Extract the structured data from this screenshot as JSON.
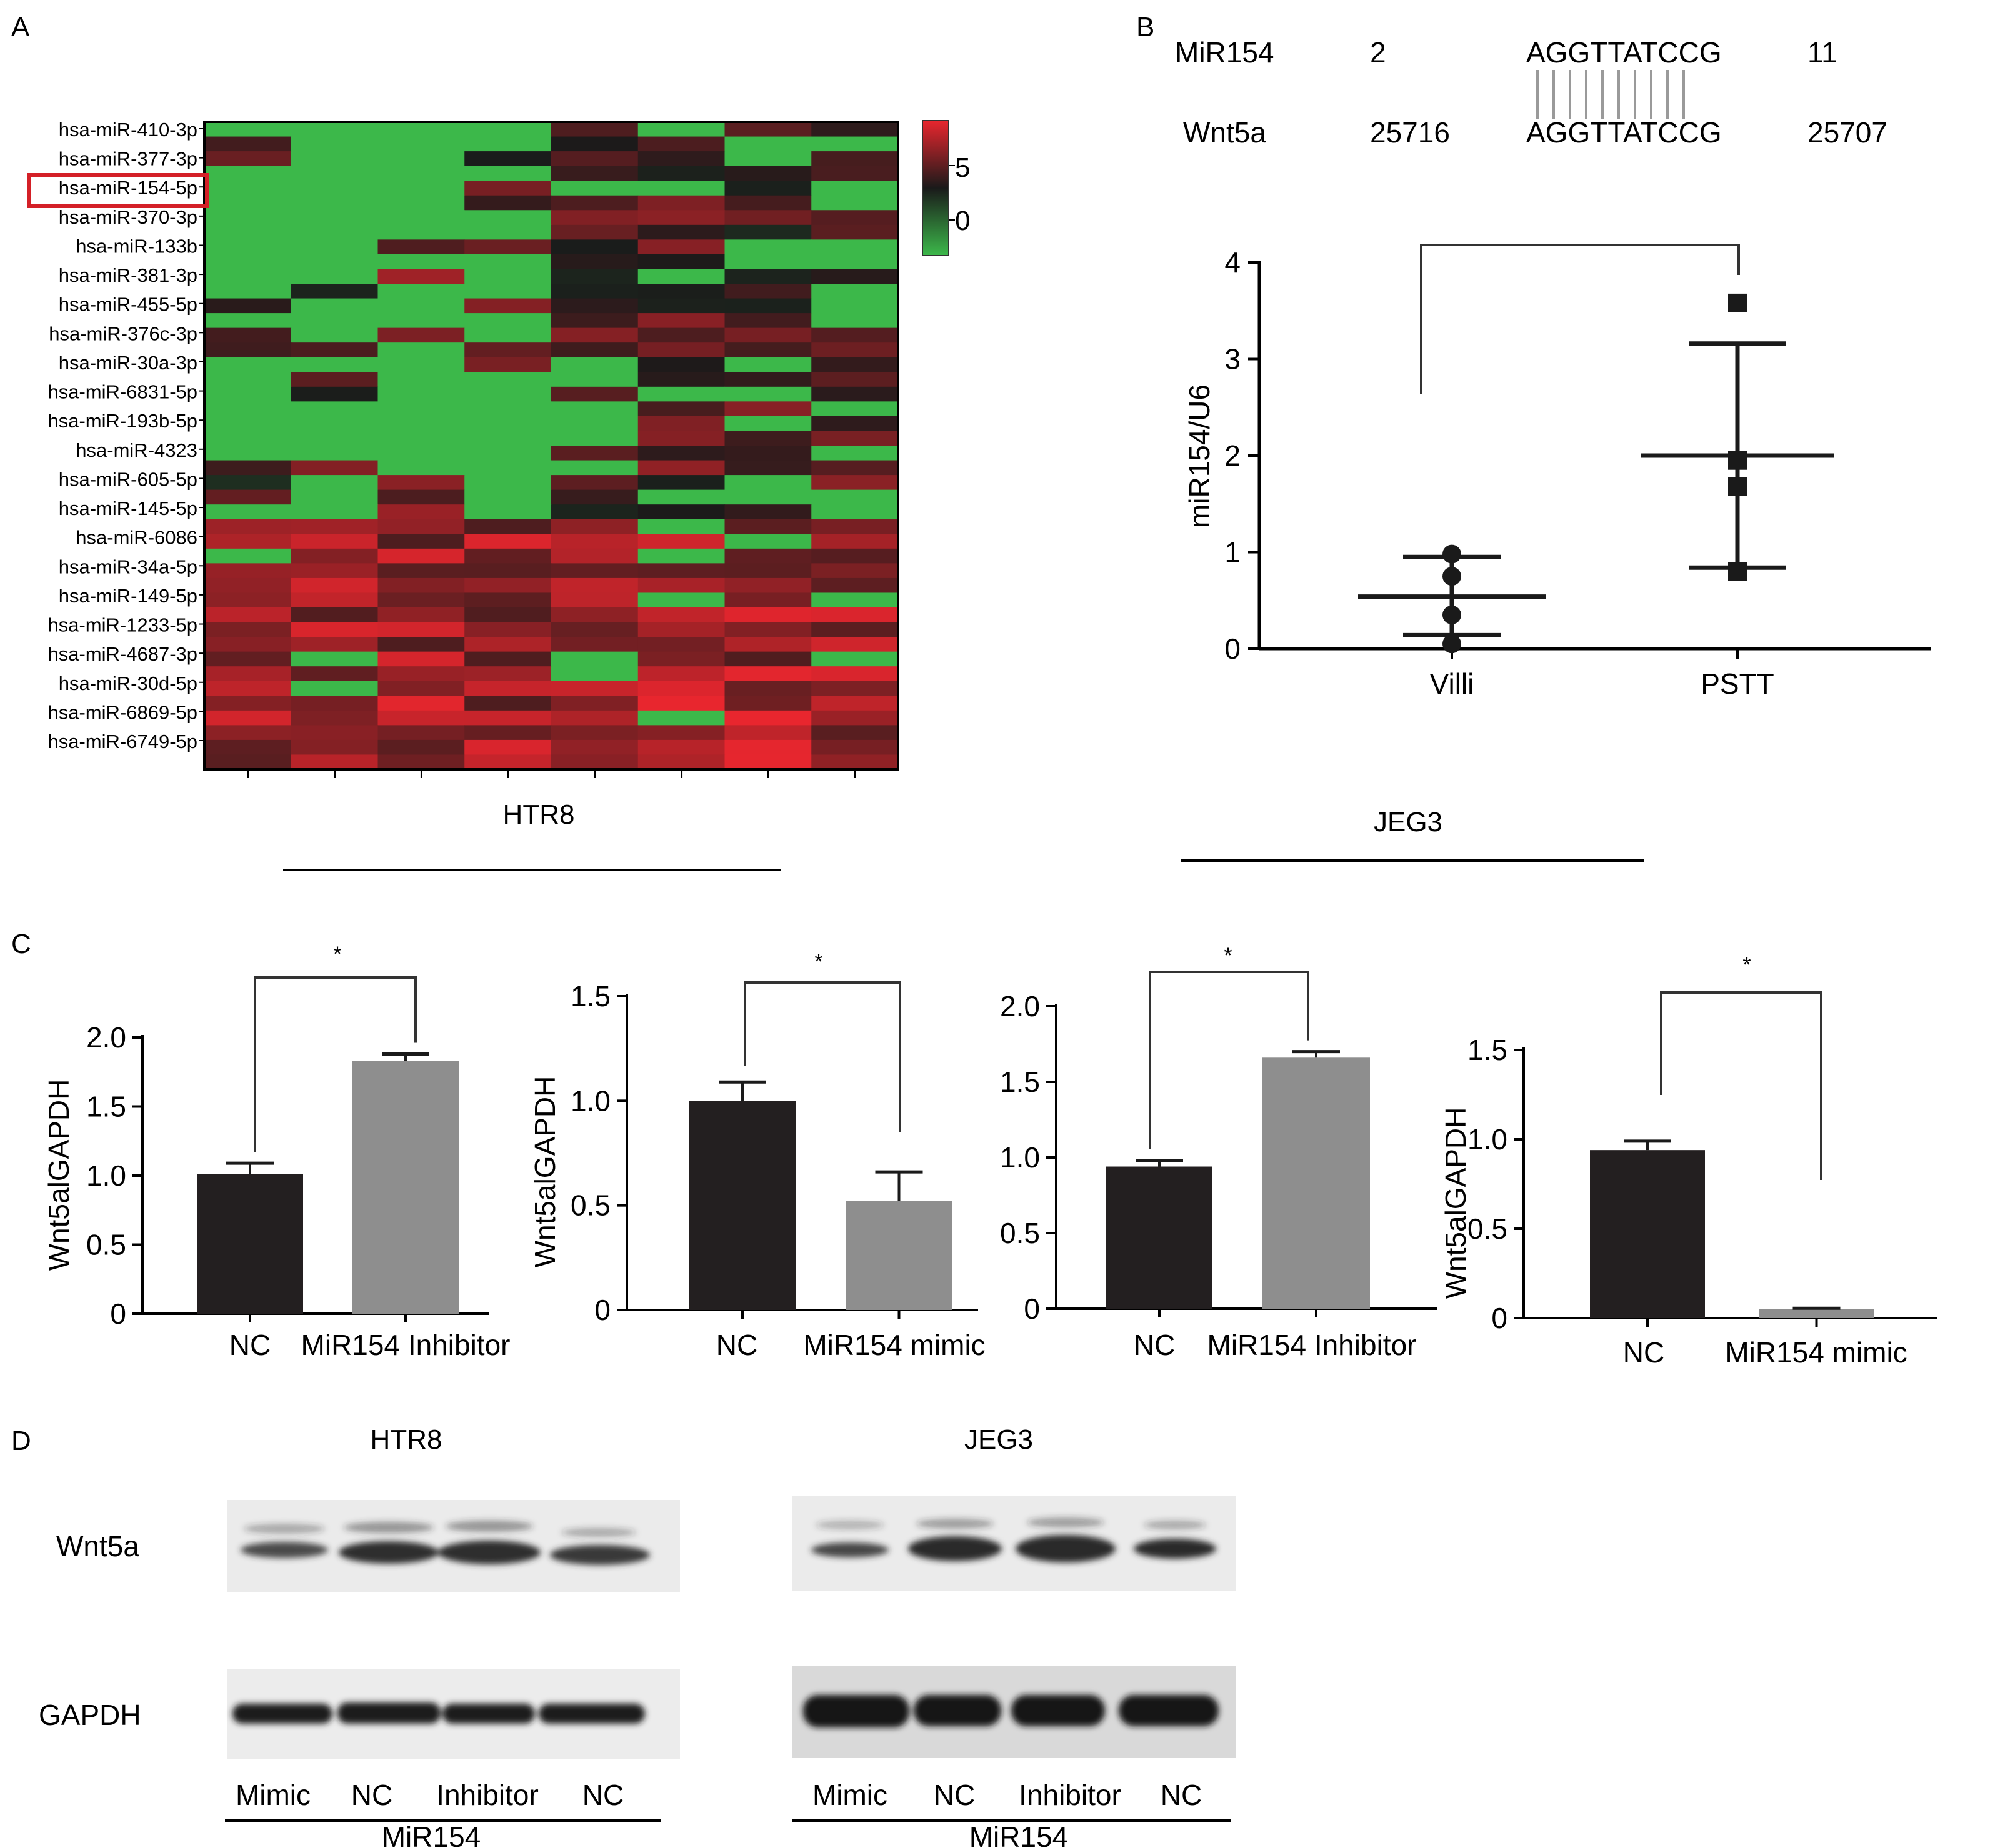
{
  "panels": {
    "A": {
      "label": "A",
      "row_labels": [
        "hsa-miR-410-3p",
        "hsa-miR-377-3p",
        "hsa-miR-154-5p",
        "hsa-miR-370-3p",
        "hsa-miR-133b",
        "hsa-miR-381-3p",
        "hsa-miR-455-5p",
        "hsa-miR-376c-3p",
        "hsa-miR-30a-3p",
        "hsa-miR-6831-5p",
        "hsa-miR-193b-5p",
        "hsa-miR-4323",
        "hsa-miR-605-5p",
        "hsa-miR-145-5p",
        "hsa-miR-6086",
        "hsa-miR-34a-5p",
        "hsa-miR-149-5p",
        "hsa-miR-1233-5p",
        "hsa-miR-4687-3p",
        "hsa-miR-30d-5p",
        "hsa-miR-6869-5p",
        "hsa-miR-6749-5p"
      ],
      "highlighted_row": "hsa-miR-154-5p",
      "colorbar_ticks": [
        "5",
        "0"
      ],
      "group_labels": [
        "HTR8",
        "JEG3"
      ],
      "colors": {
        "high": "#e8262e",
        "mid": "#1a1a1a",
        "low": "#3cb84a"
      }
    },
    "B": {
      "label": "B",
      "seq_rows": [
        {
          "name": "MiR154",
          "start": "2",
          "seq": "AGGTTATCCG",
          "end": "11"
        },
        {
          "name": "Wnt5a",
          "start": "25716",
          "seq": "AGGTTATCCG",
          "end": "25707"
        }
      ]
    },
    "C": {
      "label": "C"
    },
    "D": {
      "label": "D",
      "blots": [
        {
          "cell_line": "HTR8",
          "lanes": [
            "Mimic",
            "NC",
            "Inhibitor",
            "NC"
          ],
          "group": "MiR154"
        },
        {
          "cell_line": "JEG3",
          "lanes": [
            "Mimic",
            "NC",
            "Inhibitor",
            "NC"
          ],
          "group": "MiR154"
        }
      ],
      "rows": [
        "Wnt5a",
        "GAPDH"
      ]
    }
  },
  "chart_data": [
    {
      "type": "scatter",
      "panel": "B",
      "categories": [
        "Villi",
        "PSTT"
      ],
      "ylabel": "miR154/U6",
      "ylim": [
        0,
        4
      ],
      "yticks": [
        "0",
        "1",
        "2",
        "3",
        "4"
      ],
      "series": [
        {
          "name": "Villi",
          "marker": "circle",
          "points": [
            0.05,
            0.35,
            0.75,
            0.98
          ],
          "mean": 0.54,
          "sd_low": 0.14,
          "sd_high": 0.95
        },
        {
          "name": "PSTT",
          "marker": "square",
          "points": [
            0.8,
            1.68,
            1.95,
            3.58
          ],
          "mean": 2.0,
          "sd_low": 0.84,
          "sd_high": 3.16
        }
      ],
      "significance": ""
    },
    {
      "type": "bar",
      "panel": "C1",
      "categories": [
        "NC",
        "MiR154 Inhibitor"
      ],
      "values": [
        1.01,
        1.83
      ],
      "errors": [
        0.08,
        0.05
      ],
      "ylabel": "Wnt5alGAPDH",
      "ylim": [
        0,
        2.0
      ],
      "yticks": [
        "0",
        "0.5",
        "1.0",
        "1.5",
        "2.0"
      ],
      "significance": "*",
      "colors": [
        "#231f20",
        "#8e8e8e"
      ]
    },
    {
      "type": "bar",
      "panel": "C2",
      "categories": [
        "NC",
        "MiR154 mimic"
      ],
      "values": [
        1.0,
        0.52
      ],
      "errors": [
        0.09,
        0.14
      ],
      "ylabel": "Wnt5alGAPDH",
      "ylim": [
        0,
        1.5
      ],
      "yticks": [
        "0",
        "0.5",
        "1.0",
        "1.5"
      ],
      "significance": "*",
      "colors": [
        "#231f20",
        "#8e8e8e"
      ]
    },
    {
      "type": "bar",
      "panel": "C3",
      "categories": [
        "NC",
        "MiR154 Inhibitor"
      ],
      "values": [
        0.94,
        1.66
      ],
      "errors": [
        0.04,
        0.04
      ],
      "ylabel": "",
      "ylim": [
        0,
        2.0
      ],
      "yticks": [
        "0",
        "0.5",
        "1.0",
        "1.5",
        "2.0"
      ],
      "significance": "*",
      "colors": [
        "#231f20",
        "#8e8e8e"
      ]
    },
    {
      "type": "bar",
      "panel": "C4",
      "categories": [
        "NC",
        "MiR154 mimic"
      ],
      "values": [
        0.94,
        0.05
      ],
      "errors": [
        0.05,
        0.005
      ],
      "ylabel": "Wnt5alGAPDH",
      "ylim": [
        0,
        1.5
      ],
      "yticks": [
        "0",
        "0.5",
        "1.0",
        "1.5"
      ],
      "significance": "*",
      "colors": [
        "#231f20",
        "#8e8e8e"
      ]
    }
  ]
}
